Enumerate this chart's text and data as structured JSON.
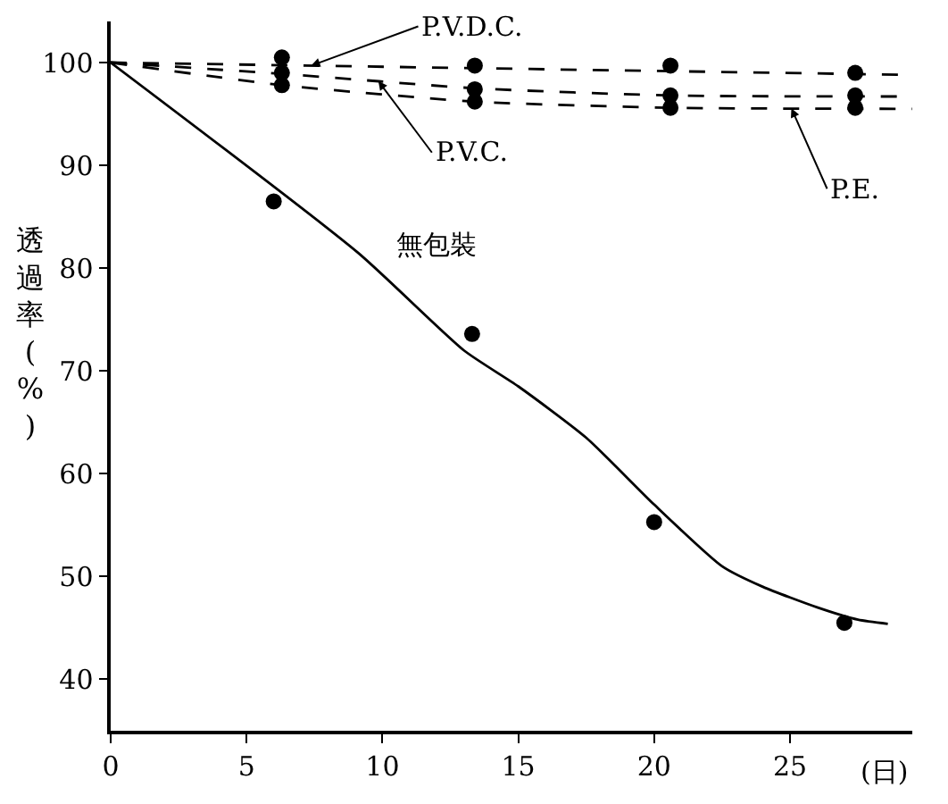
{
  "chart_data": {
    "type": "line",
    "xlabel": "(日)",
    "ylabel": "透過率(%)",
    "xlim": [
      0,
      29.5
    ],
    "ylim": [
      35,
      104
    ],
    "xticks": [
      0,
      5,
      10,
      15,
      20,
      25
    ],
    "yticks": [
      40,
      50,
      60,
      70,
      80,
      90,
      100
    ],
    "grid": false,
    "legend": false,
    "series": [
      {
        "name": "P.V.D.C.",
        "color": "#000000",
        "line_style": "dashed",
        "marker": "none",
        "x": [
          0,
          29.5
        ],
        "values": [
          100,
          98.8
        ]
      },
      {
        "name": "P.V.C.",
        "color": "#000000",
        "line_style": "dashed",
        "marker": "none",
        "x": [
          0,
          6.3,
          13.4,
          20.6,
          29.5
        ],
        "values": [
          100,
          98.9,
          97.5,
          96.8,
          96.7
        ]
      },
      {
        "name": "P.E.",
        "color": "#000000",
        "line_style": "dashed",
        "marker": "none",
        "x": [
          0,
          6.3,
          13.4,
          20.6,
          29.5
        ],
        "values": [
          100,
          97.8,
          96.2,
          95.6,
          95.5
        ]
      },
      {
        "name": "無包裝",
        "color": "#000000",
        "line_style": "solid",
        "marker": "none",
        "x": [
          0,
          9.1,
          13,
          15,
          17.5,
          20,
          22.5,
          24,
          26,
          27.5,
          28.6
        ],
        "values": [
          100,
          81.5,
          72,
          68.5,
          63.5,
          57,
          51,
          49,
          47,
          45.8,
          45.4
        ]
      },
      {
        "type": "scatter",
        "color": "#000000",
        "marker": "circle",
        "x": [
          6.3,
          13.4,
          20.6,
          27.4
        ],
        "values": [
          100.5,
          99.7,
          99.7,
          99
        ]
      },
      {
        "type": "scatter",
        "color": "#000000",
        "marker": "circle",
        "x": [
          6.3,
          13.4,
          20.6,
          27.4
        ],
        "values": [
          99,
          97.4,
          96.8,
          96.8
        ]
      },
      {
        "type": "scatter",
        "color": "#000000",
        "marker": "circle",
        "x": [
          6.3,
          13.4,
          20.6,
          27.4
        ],
        "values": [
          97.8,
          96.2,
          95.6,
          95.6
        ]
      },
      {
        "type": "scatter",
        "color": "#000000",
        "marker": "circle",
        "x": [
          6,
          13.3,
          20,
          27
        ],
        "values": [
          86.5,
          73.6,
          55.3,
          45.5
        ]
      }
    ]
  }
}
